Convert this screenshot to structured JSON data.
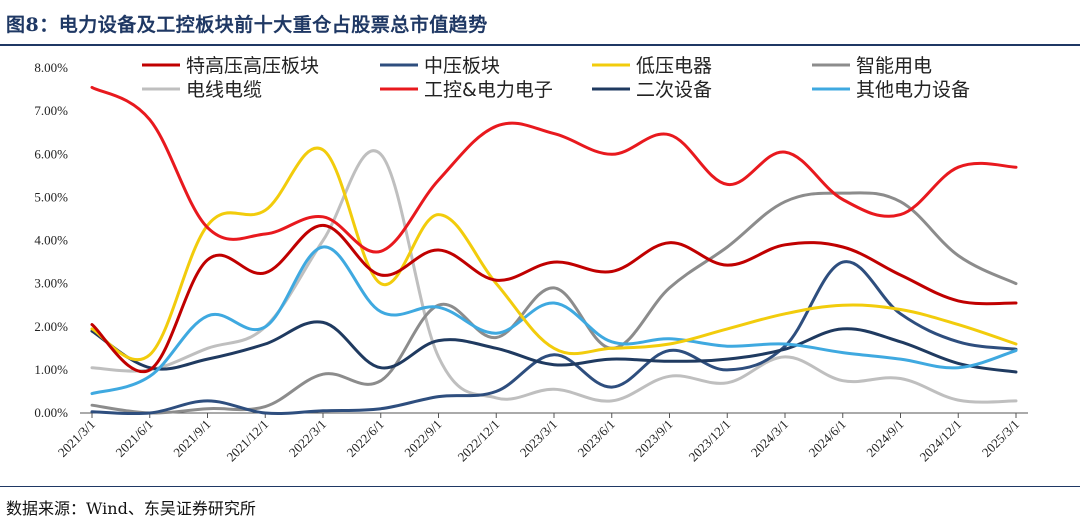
{
  "figure": {
    "title": "图8：电力设备及工控板块前十大重仓占股票总市值趋势",
    "source": "数据来源：Wind、东吴证券研究所"
  },
  "chart_data": {
    "type": "line",
    "title": "",
    "xlabel": "",
    "ylabel": "",
    "ylim": [
      0,
      0.08
    ],
    "y_ticks": [
      "0.00%",
      "1.00%",
      "2.00%",
      "3.00%",
      "4.00%",
      "5.00%",
      "6.00%",
      "7.00%",
      "8.00%"
    ],
    "x": [
      "2021/3/1",
      "2021/6/1",
      "2021/9/1",
      "2021/12/1",
      "2022/3/1",
      "2022/6/1",
      "2022/9/1",
      "2022/12/1",
      "2023/3/1",
      "2023/6/1",
      "2023/9/1",
      "2023/12/1",
      "2024/3/1",
      "2024/6/1",
      "2024/9/1",
      "2024/12/1",
      "2025/3/1"
    ],
    "grid": false,
    "legend_position": "top",
    "series": [
      {
        "name": "特高压高压板块",
        "color": "#c00000",
        "values": [
          0.0205,
          0.01,
          0.0355,
          0.0325,
          0.0435,
          0.032,
          0.0378,
          0.0308,
          0.035,
          0.0328,
          0.0395,
          0.0343,
          0.039,
          0.0385,
          0.032,
          0.026,
          0.0255
        ]
      },
      {
        "name": "中压板块",
        "color": "#2e4e7e",
        "values": [
          0.0003,
          0.0,
          0.0028,
          0.0,
          0.0005,
          0.001,
          0.0038,
          0.005,
          0.0135,
          0.006,
          0.0145,
          0.01,
          0.0155,
          0.035,
          0.023,
          0.0165,
          0.0148
        ]
      },
      {
        "name": "低压电器",
        "color": "#f2cc0c",
        "values": [
          0.0195,
          0.0135,
          0.0435,
          0.047,
          0.061,
          0.03,
          0.046,
          0.03,
          0.015,
          0.015,
          0.016,
          0.0195,
          0.023,
          0.025,
          0.024,
          0.0205,
          0.016
        ]
      },
      {
        "name": "智能用电",
        "color": "#8c8c8c",
        "values": [
          0.0018,
          0.0,
          0.001,
          0.0015,
          0.009,
          0.0075,
          0.025,
          0.0175,
          0.029,
          0.015,
          0.029,
          0.0385,
          0.049,
          0.051,
          0.049,
          0.0365,
          0.03
        ]
      },
      {
        "name": "电线电缆",
        "color": "#bfbfbf",
        "values": [
          0.0105,
          0.01,
          0.015,
          0.02,
          0.04,
          0.06,
          0.013,
          0.0035,
          0.0055,
          0.0028,
          0.0085,
          0.007,
          0.013,
          0.0075,
          0.008,
          0.003,
          0.0028
        ]
      },
      {
        "name": "工控&电力电子",
        "color": "#e8191e",
        "values": [
          0.0755,
          0.068,
          0.043,
          0.0415,
          0.0455,
          0.0375,
          0.054,
          0.0665,
          0.0648,
          0.06,
          0.0645,
          0.053,
          0.0605,
          0.0495,
          0.046,
          0.057,
          0.057
        ]
      },
      {
        "name": "二次设备",
        "color": "#1f3a60",
        "values": [
          0.019,
          0.0105,
          0.0125,
          0.016,
          0.021,
          0.0105,
          0.0168,
          0.015,
          0.0112,
          0.0125,
          0.012,
          0.0125,
          0.0148,
          0.0195,
          0.0165,
          0.0115,
          0.0095
        ]
      },
      {
        "name": "其他电力设备",
        "color": "#3fa9e0",
        "values": [
          0.0045,
          0.0085,
          0.0225,
          0.02,
          0.0385,
          0.0235,
          0.0245,
          0.0185,
          0.0255,
          0.0165,
          0.0172,
          0.0155,
          0.016,
          0.014,
          0.0125,
          0.0105,
          0.0145
        ]
      }
    ]
  }
}
